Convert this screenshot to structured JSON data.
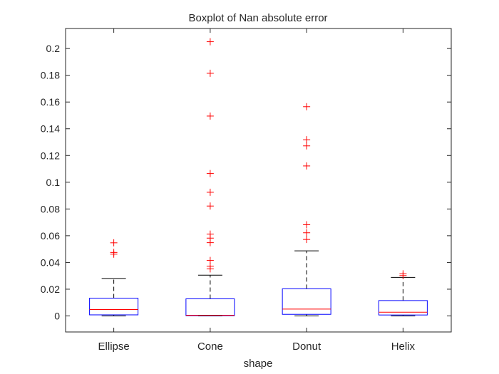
{
  "chart_data": {
    "type": "boxplot",
    "title": "Boxplot of Nan absolute error",
    "xlabel": "shape",
    "ylabel": "",
    "categories": [
      "Ellipse",
      "Cone",
      "Donut",
      "Helix"
    ],
    "ylim": [
      -0.012,
      0.215
    ],
    "yticks": [
      0,
      0.02,
      0.04,
      0.06,
      0.08,
      0.1,
      0.12,
      0.14,
      0.16,
      0.18,
      0.2
    ],
    "ytick_labels": [
      "0",
      "0.02",
      "0.04",
      "0.06",
      "0.08",
      "0.1",
      "0.12",
      "0.14",
      "0.16",
      "0.18",
      "0.2"
    ],
    "grid": false,
    "box_color": "#0000ff",
    "median_color": "#ff0000",
    "whisker_color": "#000000",
    "outlier_color": "#ff0000",
    "axis_color": "#262626",
    "boxes": [
      {
        "name": "Ellipse",
        "whisker_low": 0.0,
        "q1": 0.0008,
        "median": 0.0048,
        "q3": 0.0133,
        "whisker_high": 0.028,
        "outliers": [
          0.0547,
          0.0475,
          0.0462
        ]
      },
      {
        "name": "Cone",
        "whisker_low": 0.0,
        "q1": 0.0002,
        "median": 0.0005,
        "q3": 0.0128,
        "whisker_high": 0.0305,
        "outliers": [
          0.2051,
          0.1815,
          0.1495,
          0.1065,
          0.0925,
          0.0822,
          0.0612,
          0.0582,
          0.0548,
          0.0415,
          0.0372,
          0.0352
        ]
      },
      {
        "name": "Donut",
        "whisker_low": 0.0,
        "q1": 0.0012,
        "median": 0.0051,
        "q3": 0.0203,
        "whisker_high": 0.0487,
        "outliers": [
          0.1565,
          0.1318,
          0.1272,
          0.1122,
          0.0682,
          0.0622,
          0.0572
        ]
      },
      {
        "name": "Helix",
        "whisker_low": 0.0,
        "q1": 0.0007,
        "median": 0.0028,
        "q3": 0.0115,
        "whisker_high": 0.0288,
        "outliers": [
          0.0315,
          0.0302
        ]
      }
    ]
  }
}
